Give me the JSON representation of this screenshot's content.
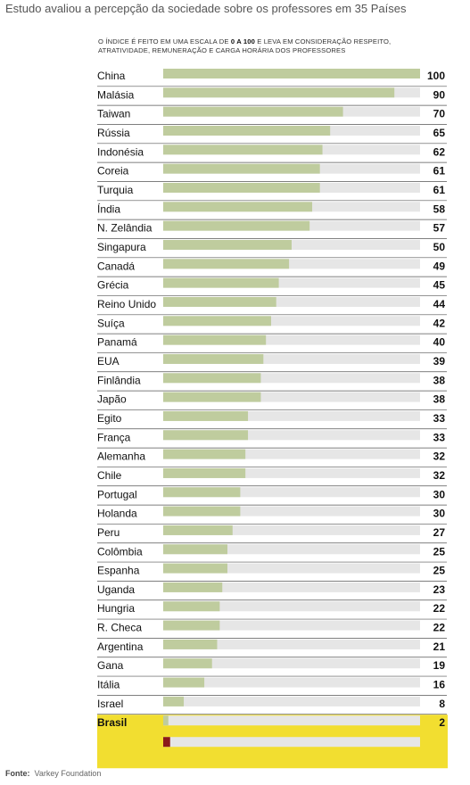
{
  "title": "Estudo avaliou a percepção da sociedade sobre os professores em 35 Países",
  "note": {
    "before": "O índice é feito em uma escala de ",
    "bold": "0 a 100",
    "after": " e leva em consideração respeito, atratividade, remuneração e carga horária dos professores"
  },
  "source": {
    "label": "Fonte:",
    "text": "Varkey Foundation"
  },
  "colors": {
    "bar": "#bfcc9e",
    "track": "#e6e6e6",
    "highlight_bg": "#f2de30",
    "highlight_bar": "#8b1a1a",
    "rule": "#555555"
  },
  "chart_data": {
    "type": "bar",
    "orientation": "horizontal",
    "xlim": [
      0,
      100
    ],
    "highlight": "Brasil",
    "categories": [
      "China",
      "Malásia",
      "Taiwan",
      "Rússia",
      "Indonésia",
      "Coreia",
      "Turquia",
      "Índia",
      "N. Zelândia",
      "Singapura",
      "Canadá",
      "Grécia",
      "Reino Unido",
      "Suíça",
      "Panamá",
      "EUA",
      "Finlândia",
      "Japão",
      "Egito",
      "França",
      "Alemanha",
      "Chile",
      "Portugal",
      "Holanda",
      "Peru",
      "Colômbia",
      "Espanha",
      "Uganda",
      "Hungria",
      "R. Checa",
      "Argentina",
      "Gana",
      "Itália",
      "Israel",
      "Brasil"
    ],
    "values": [
      100,
      90,
      70,
      65,
      62,
      61,
      61,
      58,
      57,
      50,
      49,
      45,
      44,
      42,
      40,
      39,
      38,
      38,
      33,
      33,
      32,
      32,
      30,
      30,
      27,
      25,
      25,
      23,
      22,
      22,
      21,
      19,
      16,
      8,
      2
    ]
  }
}
